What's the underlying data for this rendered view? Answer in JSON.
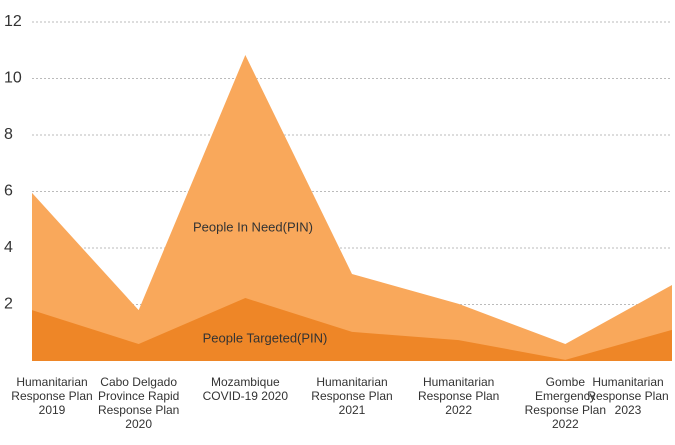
{
  "chart_data": {
    "type": "area",
    "categories": [
      "Humanitarian Response Plan 2019",
      "Cabo Delgado Province Rapid Response Plan 2020",
      "Mozambique COVID-19 2020",
      "Humanitarian Response Plan 2021",
      "Humanitarian Response Plan 2022",
      "Gombe Emergency Response Plan 2022",
      "Humanitarian Response Plan 2023"
    ],
    "series": [
      {
        "name": "People In Need(PIN)",
        "color": "#f9a85b",
        "values": [
          5.95,
          1.8,
          10.83,
          3.08,
          2.02,
          0.6,
          2.69
        ]
      },
      {
        "name": "People Targeted(PIN)",
        "color": "#ee8627",
        "values": [
          1.8,
          0.6,
          2.23,
          1.03,
          0.74,
          0.04,
          1.1
        ]
      }
    ],
    "ylim": [
      0,
      12
    ],
    "yticks": [
      2,
      4,
      6,
      8,
      10,
      12
    ],
    "grid": true
  }
}
